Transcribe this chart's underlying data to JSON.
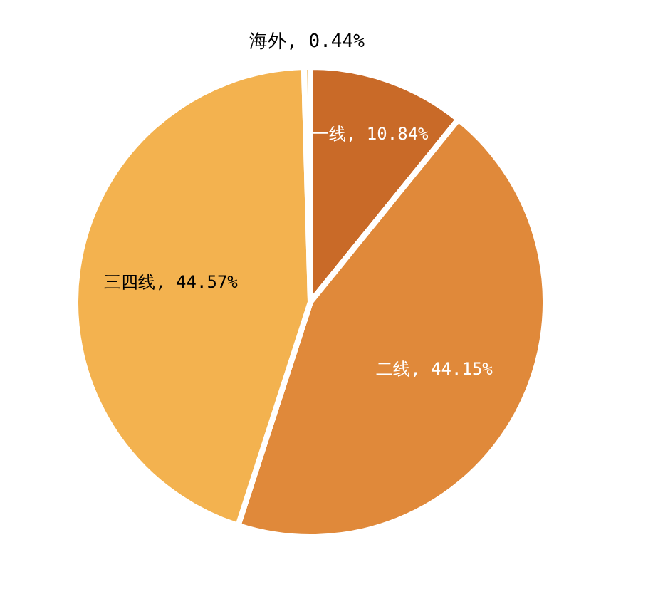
{
  "chart_data": {
    "type": "pie",
    "categories": [
      "一线",
      "二线",
      "三四线",
      "海外"
    ],
    "values": [
      10.84,
      44.15,
      44.57,
      0.44
    ],
    "value_labels": [
      "10.84%",
      "44.15%",
      "44.57%",
      "0.44%"
    ],
    "colors": [
      "#c96a28",
      "#e0893a",
      "#f3b24f",
      "#f4cf8e"
    ]
  }
}
